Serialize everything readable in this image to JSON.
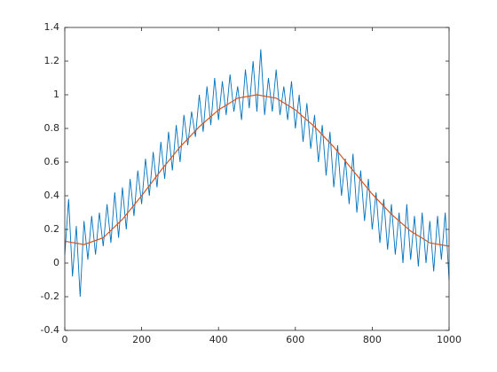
{
  "chart_data": {
    "type": "line",
    "xlim": [
      0,
      1000
    ],
    "xticks": [
      0,
      200,
      400,
      600,
      800,
      1000
    ],
    "ylim": [
      -0.4,
      1.4
    ],
    "yticks": [
      -0.4,
      -0.2,
      0,
      0.2,
      0.4,
      0.6,
      0.8,
      1,
      1.2,
      1.4
    ],
    "series": [
      {
        "color": "#0072BD",
        "x": [
          0,
          10,
          20,
          30,
          40,
          50,
          60,
          70,
          80,
          90,
          100,
          110,
          120,
          130,
          140,
          150,
          160,
          170,
          180,
          190,
          200,
          210,
          220,
          230,
          240,
          250,
          260,
          270,
          280,
          290,
          300,
          310,
          320,
          330,
          340,
          350,
          360,
          370,
          380,
          390,
          400,
          410,
          420,
          430,
          440,
          450,
          460,
          470,
          480,
          490,
          500,
          510,
          520,
          530,
          540,
          550,
          560,
          570,
          580,
          590,
          600,
          610,
          620,
          630,
          640,
          650,
          660,
          670,
          680,
          690,
          700,
          710,
          720,
          730,
          740,
          750,
          760,
          770,
          780,
          790,
          800,
          810,
          820,
          830,
          840,
          850,
          860,
          870,
          880,
          890,
          900,
          910,
          920,
          930,
          940,
          950,
          960,
          970,
          980,
          990,
          1000
        ],
        "values": [
          0.05,
          0.38,
          -0.08,
          0.22,
          -0.2,
          0.25,
          0.02,
          0.28,
          0.05,
          0.3,
          0.1,
          0.35,
          0.12,
          0.42,
          0.15,
          0.45,
          0.2,
          0.5,
          0.28,
          0.55,
          0.35,
          0.62,
          0.4,
          0.66,
          0.45,
          0.72,
          0.5,
          0.78,
          0.55,
          0.82,
          0.6,
          0.88,
          0.7,
          0.9,
          0.75,
          1.0,
          0.78,
          1.05,
          0.82,
          1.1,
          0.85,
          1.08,
          0.88,
          1.12,
          0.9,
          1.05,
          0.85,
          1.15,
          0.92,
          1.2,
          0.9,
          1.27,
          0.88,
          1.1,
          0.9,
          1.15,
          0.88,
          1.05,
          0.85,
          1.08,
          0.8,
          1.0,
          0.72,
          0.95,
          0.68,
          0.88,
          0.6,
          0.82,
          0.52,
          0.78,
          0.45,
          0.7,
          0.4,
          0.62,
          0.35,
          0.65,
          0.3,
          0.55,
          0.25,
          0.5,
          0.2,
          0.42,
          0.12,
          0.38,
          0.08,
          0.35,
          0.05,
          0.3,
          0.0,
          0.35,
          0.02,
          0.28,
          -0.02,
          0.3,
          0.0,
          0.25,
          -0.05,
          0.28,
          0.02,
          0.3,
          -0.1
        ]
      },
      {
        "color": "#D95319",
        "x": [
          0,
          50,
          100,
          150,
          200,
          250,
          300,
          350,
          400,
          450,
          500,
          550,
          600,
          650,
          700,
          750,
          800,
          850,
          900,
          950,
          1000
        ],
        "values": [
          0.13,
          0.11,
          0.15,
          0.26,
          0.4,
          0.55,
          0.69,
          0.81,
          0.91,
          0.98,
          1.0,
          0.98,
          0.91,
          0.81,
          0.69,
          0.55,
          0.41,
          0.29,
          0.19,
          0.12,
          0.1
        ]
      }
    ]
  }
}
